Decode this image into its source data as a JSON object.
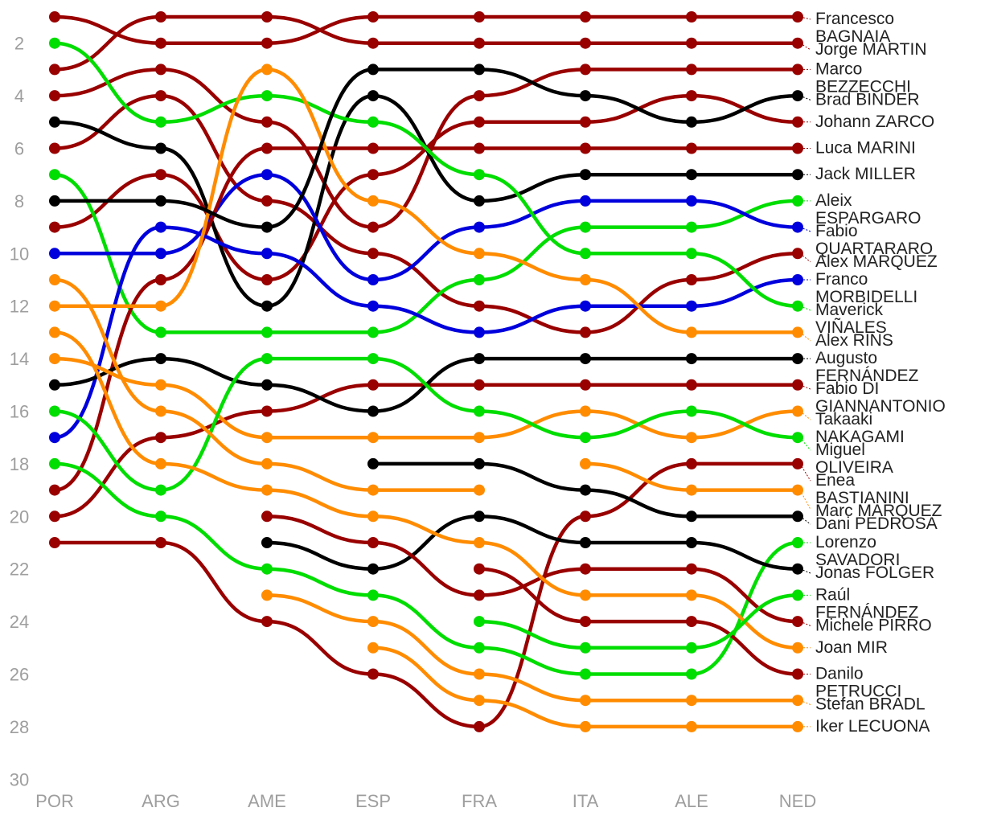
{
  "chart_data": {
    "type": "line",
    "title": "",
    "xlabel": "",
    "ylabel": "",
    "ylim": [
      30,
      1
    ],
    "y_inverted": true,
    "y_ticks": [
      2,
      4,
      6,
      8,
      10,
      12,
      14,
      16,
      18,
      20,
      22,
      24,
      26,
      28,
      30
    ],
    "categories": [
      "POR",
      "ARG",
      "AME",
      "ESP",
      "FRA",
      "ITA",
      "ALE",
      "NED"
    ],
    "grid": false,
    "legend": "none (labels at line ends)",
    "colors": {
      "red": "#990000",
      "green": "#00dd00",
      "black": "#000000",
      "blue": "#0000dd",
      "orange": "#ff8c00"
    },
    "series": [
      {
        "name": "Francesco BAGNAIA",
        "color": "red",
        "values": [
          3,
          1,
          1,
          2,
          2,
          2,
          2,
          2
        ]
      },
      {
        "name": "Jorge MARTIN",
        "color": "red",
        "values": [
          1,
          2,
          2,
          1,
          1,
          1,
          1,
          1
        ]
      },
      {
        "name": "Marco BEZZECCHI",
        "color": "red",
        "values": [
          6,
          4,
          8,
          10,
          12,
          13,
          11,
          10
        ]
      },
      {
        "name": "Brad BINDER",
        "color": "red",
        "values": [
          4,
          3,
          5,
          9,
          4,
          3,
          3,
          3
        ]
      },
      {
        "name": "Johann ZARCO",
        "color": "red",
        "values": [
          9,
          7,
          11,
          7,
          5,
          5,
          4,
          5
        ]
      },
      {
        "name": "Luca MARINI",
        "color": "red",
        "values": [
          20,
          17,
          16,
          15,
          15,
          15,
          15,
          15
        ]
      },
      {
        "name": "Jack MILLER",
        "color": "black",
        "values": [
          5,
          6,
          12,
          4,
          8,
          7,
          7,
          7
        ]
      },
      {
        "name": "Aleix ESPARGARO",
        "color": "green",
        "values": [
          7,
          13,
          13,
          13,
          11,
          9,
          9,
          8
        ]
      },
      {
        "name": "Fabio QUARTARARO",
        "color": "blue",
        "values": [
          10,
          10,
          7,
          11,
          9,
          8,
          8,
          9
        ]
      },
      {
        "name": "Alex MARQUEZ",
        "color": "red",
        "values": [
          19,
          11,
          6,
          6,
          6,
          6,
          6,
          6
        ]
      },
      {
        "name": "Franco MORBIDELLI",
        "color": "blue",
        "values": [
          17,
          9,
          10,
          12,
          13,
          12,
          12,
          11
        ]
      },
      {
        "name": "Maverick VIÑALES",
        "color": "green",
        "values": [
          2,
          5,
          4,
          5,
          7,
          10,
          10,
          12
        ]
      },
      {
        "name": "Alex RINS",
        "color": "orange",
        "values": [
          12,
          12,
          3,
          8,
          10,
          11,
          13,
          13
        ]
      },
      {
        "name": "Augusto FERNÁNDEZ",
        "color": "black",
        "values": [
          15,
          14,
          15,
          16,
          14,
          14,
          14,
          14
        ]
      },
      {
        "name": "Fabio DI GIANNANTONIO",
        "color": "red",
        "values": [
          21,
          21,
          24,
          26,
          28,
          20,
          18,
          18
        ]
      },
      {
        "name": "Takaaki NAKAGAMI",
        "color": "orange",
        "values": [
          14,
          15,
          17,
          17,
          17,
          16,
          17,
          16
        ]
      },
      {
        "name": "Miguel OLIVEIRA",
        "color": "green",
        "values": [
          16,
          19,
          14,
          14,
          16,
          17,
          16,
          17
        ]
      },
      {
        "name": "Enea BASTIANINI",
        "color": "orange",
        "values": [
          null,
          null,
          null,
          null,
          null,
          18,
          19,
          19
        ]
      },
      {
        "name": "Marc MARQUEZ",
        "color": "orange",
        "values": [
          11,
          16,
          18,
          19,
          19,
          null,
          null,
          null
        ]
      },
      {
        "name": "Dani PEDROSA",
        "color": "black",
        "values": [
          8,
          8,
          9,
          3,
          3,
          4,
          5,
          4
        ]
      },
      {
        "name": "Lorenzo SAVADORI",
        "color": "green",
        "values": [
          18,
          20,
          22,
          23,
          25,
          26,
          26,
          21
        ]
      },
      {
        "name": "Jonas FOLGER",
        "color": "black",
        "values": [
          null,
          null,
          null,
          18,
          18,
          19,
          20,
          20
        ]
      },
      {
        "name": "Raúl FERNÁNDEZ",
        "color": "black",
        "values": [
          null,
          null,
          21,
          22,
          20,
          21,
          21,
          22
        ]
      },
      {
        "name": "Michele PIRRO",
        "color": "red",
        "values": [
          null,
          null,
          20,
          21,
          23,
          22,
          22,
          24
        ]
      },
      {
        "name": "Joan MIR",
        "color": "orange",
        "values": [
          13,
          18,
          19,
          20,
          21,
          23,
          23,
          25
        ]
      },
      {
        "name": "Danilo PETRUCCI",
        "color": "red",
        "values": [
          null,
          null,
          null,
          null,
          22,
          24,
          24,
          26
        ]
      },
      {
        "name": "Stefan BRADL",
        "color": "orange",
        "values": [
          null,
          null,
          23,
          24,
          26,
          27,
          27,
          27
        ]
      },
      {
        "name": "Iker LECUONA",
        "color": "orange",
        "values": [
          null,
          null,
          null,
          25,
          27,
          28,
          28,
          28
        ]
      },
      {
        "name": "",
        "color": "green",
        "values": [
          null,
          null,
          null,
          null,
          24,
          25,
          25,
          23
        ]
      }
    ],
    "end_labels": [
      {
        "lines": [
          "Francesco",
          "BAGNAIA"
        ],
        "rank": 1
      },
      {
        "lines": [
          "Jorge MARTIN"
        ],
        "rank": 2
      },
      {
        "lines": [
          "Marco",
          "BEZZECCHI"
        ],
        "rank": 3
      },
      {
        "lines": [
          "Brad BINDER"
        ],
        "rank": 4
      },
      {
        "lines": [
          "Johann ZARCO"
        ],
        "rank": 5
      },
      {
        "lines": [
          "Luca MARINI"
        ],
        "rank": 6
      },
      {
        "lines": [
          "Jack MILLER"
        ],
        "rank": 7
      },
      {
        "lines": [
          "Aleix",
          "ESPARGARO"
        ],
        "rank": 8
      },
      {
        "lines": [
          "Fabio",
          "QUARTARARO"
        ],
        "rank": 9
      },
      {
        "lines": [
          "Alex MARQUEZ"
        ],
        "rank": 10
      },
      {
        "lines": [
          "Franco",
          "MORBIDELLI"
        ],
        "rank": 11
      },
      {
        "lines": [
          "Maverick",
          "VIÑALES"
        ],
        "rank": 12
      },
      {
        "lines": [
          "Alex RINS"
        ],
        "rank": 13
      },
      {
        "lines": [
          "Augusto",
          "FERNÁNDEZ"
        ],
        "rank": 14
      },
      {
        "lines": [
          "Fabio DI",
          "GIANNANTONIO"
        ],
        "rank": 15
      },
      {
        "lines": [
          "Takaaki",
          "NAKAGAMI"
        ],
        "rank": 16
      },
      {
        "lines": [
          "Miguel",
          "OLIVEIRA"
        ],
        "rank": 17
      },
      {
        "lines": [
          "Enea",
          "BASTIANINI"
        ],
        "rank": 18
      },
      {
        "lines": [
          "Marc MARQUEZ"
        ],
        "rank": 19
      },
      {
        "lines": [
          "Dani PEDROSA"
        ],
        "rank": 20
      },
      {
        "lines": [
          "Lorenzo",
          "SAVADORI"
        ],
        "rank": 21
      },
      {
        "lines": [
          "Jonas FOLGER"
        ],
        "rank": 22
      },
      {
        "lines": [
          "Raúl",
          "FERNÁNDEZ"
        ],
        "rank": 23
      },
      {
        "lines": [
          "Michele PIRRO"
        ],
        "rank": 24
      },
      {
        "lines": [
          "Joan MIR"
        ],
        "rank": 25
      },
      {
        "lines": [
          "Danilo",
          "PETRUCCI"
        ],
        "rank": 26
      },
      {
        "lines": [
          "Stefan BRADL"
        ],
        "rank": 27
      },
      {
        "lines": [
          "Iker LECUONA"
        ],
        "rank": 28
      }
    ]
  }
}
